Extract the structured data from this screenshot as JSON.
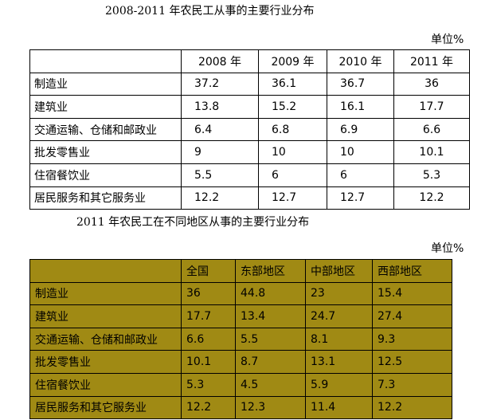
{
  "table1": {
    "title": "2008-2011 年农民工从事的主要行业分布",
    "unit": "单位%",
    "headers": [
      "",
      "2008 年",
      "2009 年",
      "2010 年",
      "2011 年"
    ],
    "rows": [
      {
        "label": "制造业",
        "values": [
          "37.2",
          "36.1",
          "36.7",
          "36"
        ]
      },
      {
        "label": "建筑业",
        "values": [
          "13.8",
          "15.2",
          "16.1",
          "17.7"
        ]
      },
      {
        "label": "交通运输、仓储和邮政业",
        "values": [
          "6.4",
          "6.8",
          "6.9",
          "6.6"
        ]
      },
      {
        "label": "批发零售业",
        "values": [
          "9",
          "10",
          "10",
          "10.1"
        ]
      },
      {
        "label": "住宿餐饮业",
        "values": [
          "5.5",
          "6",
          "6",
          "5.3"
        ]
      },
      {
        "label": "居民服务和其它服务业",
        "values": [
          "12.2",
          "12.7",
          "12.7",
          "12.2"
        ]
      }
    ]
  },
  "table2": {
    "title": "2011 年农民工在不同地区从事的主要行业分布",
    "unit": "单位%",
    "background_color": "#a08a14",
    "headers": [
      "",
      "全国",
      "东部地区",
      "中部地区",
      "西部地区"
    ],
    "rows": [
      {
        "label": "制造业",
        "values": [
          "36",
          "44.8",
          "23",
          "15.4"
        ]
      },
      {
        "label": "建筑业",
        "values": [
          "17.7",
          "13.4",
          "24.7",
          "27.4"
        ]
      },
      {
        "label": "交通运输、仓储和邮政业",
        "values": [
          "6.6",
          "5.5",
          "8.1",
          "9.3"
        ]
      },
      {
        "label": "批发零售业",
        "values": [
          "10.1",
          "8.7",
          "13.1",
          "12.5"
        ]
      },
      {
        "label": "住宿餐饮业",
        "values": [
          "5.3",
          "4.5",
          "5.9",
          "7.3"
        ]
      },
      {
        "label": "居民服务和其它服务业",
        "values": [
          "12.2",
          "12.3",
          "11.4",
          "12.2"
        ]
      }
    ]
  }
}
